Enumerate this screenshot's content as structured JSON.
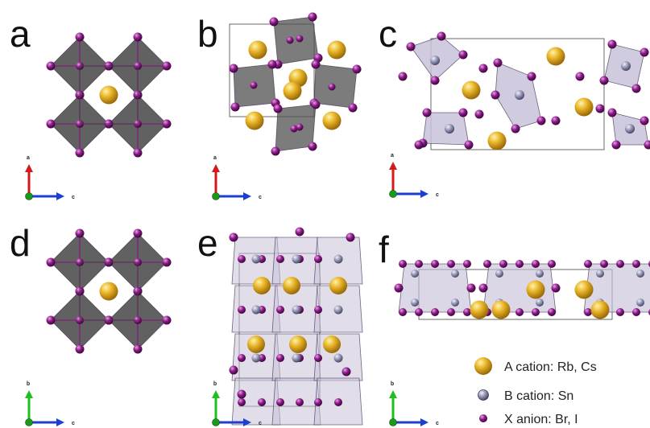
{
  "panels": [
    {
      "label": "a",
      "type": "cubic",
      "vertical_axis": "a",
      "horizontal_axis": "c",
      "vertical_color": "#d11a1a"
    },
    {
      "label": "b",
      "type": "tilted",
      "vertical_axis": "a",
      "horizontal_axis": "c",
      "vertical_color": "#d11a1a"
    },
    {
      "label": "c",
      "type": "chain",
      "vertical_axis": "a",
      "horizontal_axis": "c",
      "vertical_color": "#d11a1a"
    },
    {
      "label": "d",
      "type": "cubic",
      "vertical_axis": "b",
      "horizontal_axis": "c",
      "vertical_color": "#1fbf1f"
    },
    {
      "label": "e",
      "type": "layered",
      "vertical_axis": "b",
      "horizontal_axis": "c",
      "vertical_color": "#1fbf1f"
    },
    {
      "label": "f",
      "type": "strip",
      "vertical_axis": "b",
      "horizontal_axis": "c",
      "vertical_color": "#1fbf1f"
    }
  ],
  "legend": [
    {
      "text": "A cation: Rb, Cs",
      "atom": "A-cation-sphere-icon"
    },
    {
      "text": "B cation: Sn",
      "atom": "B-cation-sphere-icon"
    },
    {
      "text": "X  anion: Br, I",
      "atom": "X-anion-sphere-icon"
    }
  ],
  "colors": {
    "A_cation": "#e2a81c",
    "B_cation": "#8a8aa8",
    "X_anion": "#8a1a88",
    "octahedron_dark": "#505050",
    "octahedron_light": "#c8c2d8",
    "horizontal_axis": "#1a3fd1",
    "axis_origin": "#1a9a1a"
  }
}
